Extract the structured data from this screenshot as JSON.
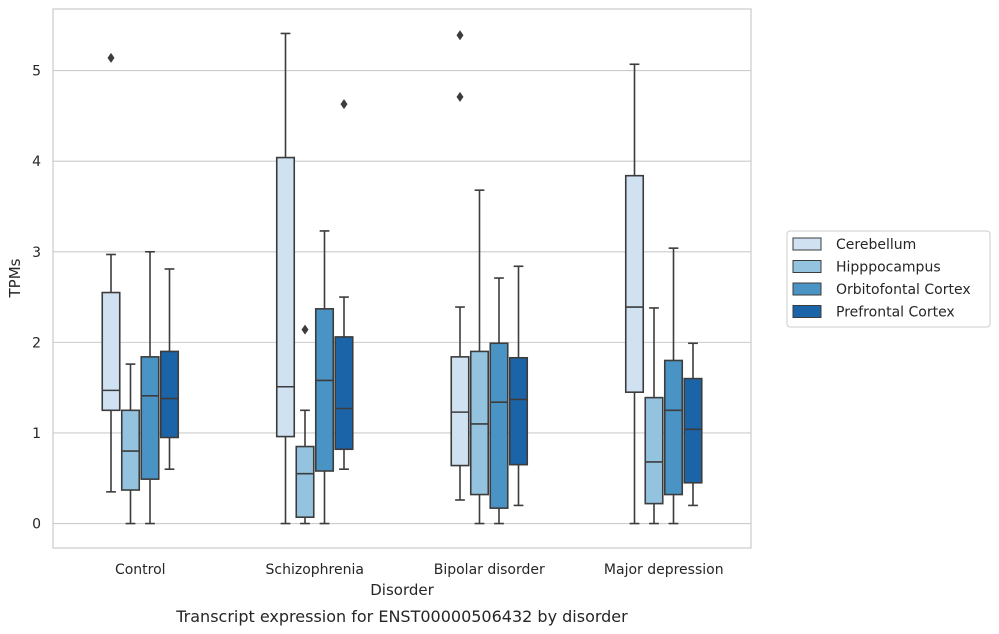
{
  "chart_data": {
    "type": "box",
    "title": "",
    "caption": "Transcript expression for ENST00000506432 by disorder",
    "xlabel": "Disorder",
    "ylabel": "TPMs",
    "ylim": [
      -0.27,
      5.68
    ],
    "yticks": [
      0,
      1,
      2,
      3,
      4,
      5
    ],
    "grid": "horizontal",
    "legend_position": "right",
    "categories": [
      "Control",
      "Schizophrenia",
      "Bipolar disorder",
      "Major depression"
    ],
    "series": [
      {
        "name": "Cerebellum",
        "color": "#d0e1f1",
        "boxes": [
          {
            "whislo": 0.35,
            "q1": 1.25,
            "med": 1.47,
            "q3": 2.55,
            "whishi": 2.97,
            "fliers": [
              5.14
            ]
          },
          {
            "whislo": 0.0,
            "q1": 0.96,
            "med": 1.51,
            "q3": 4.04,
            "whishi": 5.41,
            "fliers": []
          },
          {
            "whislo": 0.26,
            "q1": 0.64,
            "med": 1.23,
            "q3": 1.84,
            "whishi": 2.39,
            "fliers": [
              4.71,
              5.39
            ]
          },
          {
            "whislo": 0.0,
            "q1": 1.45,
            "med": 2.39,
            "q3": 3.84,
            "whishi": 5.07,
            "fliers": []
          }
        ]
      },
      {
        "name": "Hipppocampus",
        "color": "#94c3df",
        "boxes": [
          {
            "whislo": 0.0,
            "q1": 0.37,
            "med": 0.8,
            "q3": 1.25,
            "whishi": 1.76,
            "fliers": []
          },
          {
            "whislo": 0.0,
            "q1": 0.07,
            "med": 0.55,
            "q3": 0.85,
            "whishi": 1.25,
            "fliers": [
              2.14
            ]
          },
          {
            "whislo": 0.0,
            "q1": 0.32,
            "med": 1.1,
            "q3": 1.9,
            "whishi": 3.68,
            "fliers": []
          },
          {
            "whislo": 0.0,
            "q1": 0.22,
            "med": 0.68,
            "q3": 1.39,
            "whishi": 2.38,
            "fliers": []
          }
        ]
      },
      {
        "name": "Orbitofontal Cortex",
        "color": "#4a94c5",
        "boxes": [
          {
            "whislo": 0.0,
            "q1": 0.49,
            "med": 1.41,
            "q3": 1.84,
            "whishi": 3.0,
            "fliers": []
          },
          {
            "whislo": 0.0,
            "q1": 0.58,
            "med": 1.58,
            "q3": 2.37,
            "whishi": 3.23,
            "fliers": []
          },
          {
            "whislo": 0.0,
            "q1": 0.17,
            "med": 1.34,
            "q3": 1.99,
            "whishi": 2.71,
            "fliers": []
          },
          {
            "whislo": 0.0,
            "q1": 0.32,
            "med": 1.25,
            "q3": 1.8,
            "whishi": 3.04,
            "fliers": []
          }
        ]
      },
      {
        "name": "Prefrontal Cortex",
        "color": "#1c64a8",
        "boxes": [
          {
            "whislo": 0.6,
            "q1": 0.95,
            "med": 1.38,
            "q3": 1.9,
            "whishi": 2.81,
            "fliers": []
          },
          {
            "whislo": 0.6,
            "q1": 0.82,
            "med": 1.27,
            "q3": 2.06,
            "whishi": 2.5,
            "fliers": [
              4.63
            ]
          },
          {
            "whislo": 0.2,
            "q1": 0.65,
            "med": 1.37,
            "q3": 1.83,
            "whishi": 2.84,
            "fliers": []
          },
          {
            "whislo": 0.2,
            "q1": 0.45,
            "med": 1.04,
            "q3": 1.6,
            "whishi": 1.99,
            "fliers": []
          }
        ]
      }
    ]
  }
}
